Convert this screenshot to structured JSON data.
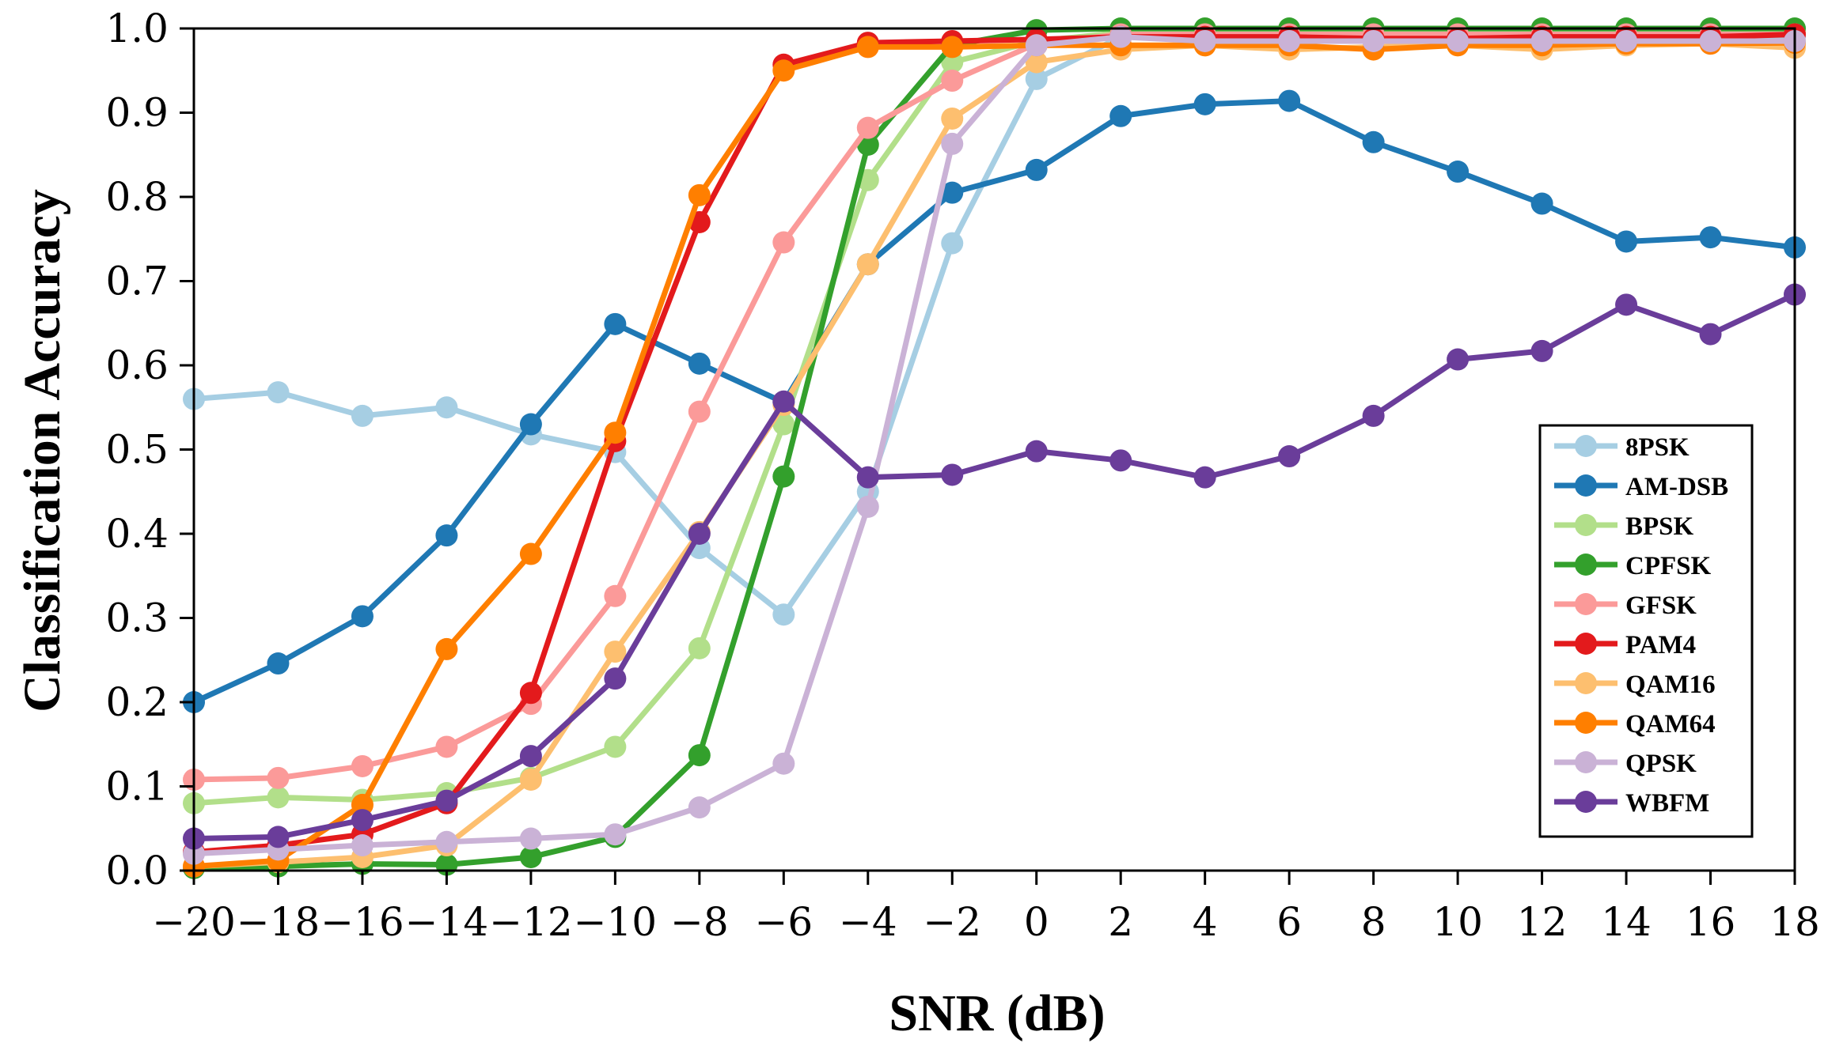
{
  "chart_data": {
    "type": "line",
    "title": "",
    "xlabel": "SNR (dB)",
    "ylabel": "Classification Accuracy",
    "xlim": [
      -20,
      18
    ],
    "ylim": [
      0.0,
      1.0
    ],
    "x": [
      -20,
      -18,
      -16,
      -14,
      -12,
      -10,
      -8,
      -6,
      -4,
      -2,
      0,
      2,
      4,
      6,
      8,
      10,
      12,
      14,
      16,
      18
    ],
    "x_ticks": [
      "−20",
      "−18",
      "−16",
      "−14",
      "−12",
      "−10",
      "−8",
      "−6",
      "−4",
      "−2",
      "0",
      "2",
      "4",
      "6",
      "8",
      "10",
      "12",
      "14",
      "16",
      "18"
    ],
    "y_ticks": [
      "0.0",
      "0.1",
      "0.2",
      "0.3",
      "0.4",
      "0.5",
      "0.6",
      "0.7",
      "0.8",
      "0.9",
      "1.0"
    ],
    "grid": false,
    "legend_position": "right",
    "series": [
      {
        "name": "8PSK",
        "color": "#a6cee3",
        "values": [
          0.56,
          0.568,
          0.54,
          0.55,
          0.518,
          0.497,
          0.383,
          0.304,
          0.45,
          0.745,
          0.94,
          0.99,
          0.99,
          0.99,
          0.99,
          0.99,
          0.99,
          0.99,
          0.99,
          0.99
        ]
      },
      {
        "name": "AM-DSB",
        "color": "#1f78b4",
        "values": [
          0.2,
          0.246,
          0.302,
          0.398,
          0.53,
          0.649,
          0.602,
          0.556,
          0.72,
          0.805,
          0.832,
          0.896,
          0.91,
          0.914,
          0.865,
          0.83,
          0.792,
          0.747,
          0.752,
          0.74
        ]
      },
      {
        "name": "BPSK",
        "color": "#b2df8a",
        "values": [
          0.08,
          0.087,
          0.084,
          0.092,
          0.11,
          0.147,
          0.264,
          0.53,
          0.82,
          0.96,
          0.985,
          0.995,
          0.995,
          0.995,
          0.995,
          0.995,
          0.995,
          0.995,
          0.995,
          0.995
        ]
      },
      {
        "name": "CPFSK",
        "color": "#33a02c",
        "values": [
          0.003,
          0.005,
          0.008,
          0.007,
          0.016,
          0.04,
          0.137,
          0.468,
          0.862,
          0.98,
          0.998,
          1.0,
          1.0,
          1.0,
          1.0,
          1.0,
          1.0,
          1.0,
          1.0,
          1.0
        ]
      },
      {
        "name": "GFSK",
        "color": "#fb9a99",
        "values": [
          0.108,
          0.11,
          0.124,
          0.147,
          0.198,
          0.326,
          0.545,
          0.746,
          0.882,
          0.938,
          0.982,
          0.993,
          0.993,
          0.993,
          0.993,
          0.993,
          0.993,
          0.993,
          0.993,
          0.993
        ]
      },
      {
        "name": "PAM4",
        "color": "#e31a1c",
        "values": [
          0.022,
          0.03,
          0.043,
          0.08,
          0.211,
          0.51,
          0.77,
          0.957,
          0.983,
          0.985,
          0.987,
          0.99,
          0.99,
          0.99,
          0.988,
          0.988,
          0.99,
          0.99,
          0.99,
          0.993
        ]
      },
      {
        "name": "QAM16",
        "color": "#fdbf6f",
        "values": [
          0.005,
          0.01,
          0.016,
          0.03,
          0.108,
          0.26,
          0.402,
          0.553,
          0.72,
          0.893,
          0.96,
          0.975,
          0.98,
          0.975,
          0.978,
          0.98,
          0.975,
          0.98,
          0.982,
          0.977
        ]
      },
      {
        "name": "QAM64",
        "color": "#ff7f00",
        "values": [
          0.005,
          0.012,
          0.078,
          0.263,
          0.376,
          0.52,
          0.802,
          0.95,
          0.978,
          0.978,
          0.98,
          0.98,
          0.98,
          0.98,
          0.975,
          0.98,
          0.98,
          0.982,
          0.982,
          0.983
        ]
      },
      {
        "name": "QPSK",
        "color": "#cab2d6",
        "values": [
          0.02,
          0.025,
          0.03,
          0.034,
          0.038,
          0.043,
          0.075,
          0.127,
          0.432,
          0.863,
          0.98,
          0.99,
          0.985,
          0.985,
          0.985,
          0.985,
          0.985,
          0.985,
          0.985,
          0.985
        ]
      },
      {
        "name": "WBFM",
        "color": "#6a3d9a",
        "values": [
          0.038,
          0.04,
          0.06,
          0.083,
          0.136,
          0.228,
          0.4,
          0.557,
          0.467,
          0.47,
          0.498,
          0.487,
          0.467,
          0.492,
          0.54,
          0.607,
          0.617,
          0.672,
          0.637,
          0.684
        ]
      }
    ]
  }
}
